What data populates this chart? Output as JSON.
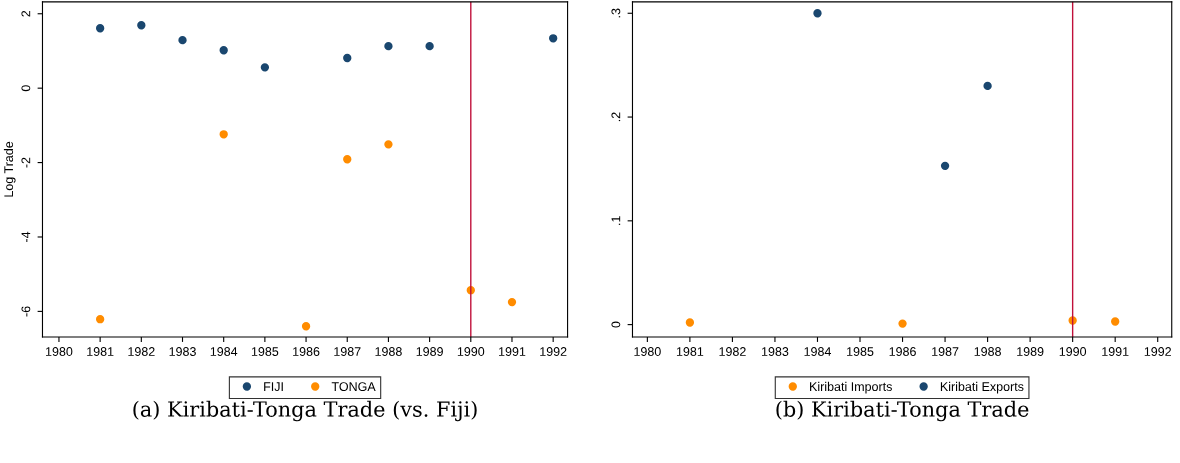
{
  "chart_data": [
    {
      "type": "scatter",
      "ylabel": "Log Trade",
      "x": [
        1981,
        1982,
        1983,
        1984,
        1985,
        1986,
        1987,
        1988,
        1989,
        1990,
        1991,
        1992
      ],
      "series": [
        {
          "name": "FIJI",
          "color": "#1a476f",
          "values": [
            1.61,
            1.69,
            1.29,
            1.02,
            0.56,
            null,
            0.81,
            1.13,
            1.13,
            null,
            null,
            1.34
          ]
        },
        {
          "name": "TONGA",
          "color": "#ff8c00",
          "values": [
            -6.21,
            null,
            null,
            -1.24,
            null,
            -6.4,
            -1.91,
            -1.51,
            null,
            -5.43,
            -5.75,
            null
          ]
        }
      ],
      "xlim": [
        1979.6,
        1992.35
      ],
      "xticks": [
        1980,
        1981,
        1982,
        1983,
        1984,
        1985,
        1986,
        1987,
        1988,
        1989,
        1990,
        1991,
        1992
      ],
      "ylim": [
        -6.69,
        2.32
      ],
      "yticks": [
        -6,
        -4,
        -2,
        0,
        2
      ],
      "ref_lines": [
        {
          "axis": "x",
          "value": 1990,
          "color": "#c0103a"
        }
      ],
      "marker": "circle",
      "legend": "bottom",
      "grid": false,
      "annotations": [
        "(a) Kiribati-Tonga Trade (vs. Fiji)"
      ]
    },
    {
      "type": "scatter",
      "x": [
        1981,
        1982,
        1983,
        1984,
        1985,
        1986,
        1987,
        1988,
        1989,
        1990,
        1991
      ],
      "series": [
        {
          "name": "Kiribati Imports",
          "color": "#ff8c00",
          "values": [
            0.002,
            null,
            null,
            null,
            null,
            0.001,
            null,
            null,
            null,
            0.004,
            0.003
          ]
        },
        {
          "name": "Kiribati Exports",
          "color": "#1a476f",
          "values": [
            null,
            null,
            null,
            0.3,
            null,
            null,
            0.153,
            0.23,
            null,
            null,
            null
          ]
        }
      ],
      "xlim": [
        1979.65,
        1992.33
      ],
      "xticks": [
        1980,
        1981,
        1982,
        1983,
        1984,
        1985,
        1986,
        1987,
        1988,
        1989,
        1990,
        1991,
        1992
      ],
      "ylim": [
        -0.012,
        0.311
      ],
      "yticks": [
        {
          "value": 0,
          "label": "0"
        },
        {
          "value": 0.1,
          "label": ".1"
        },
        {
          "value": 0.2,
          "label": ".2"
        },
        {
          "value": 0.3,
          "label": ".3"
        }
      ],
      "ref_lines": [
        {
          "axis": "x",
          "value": 1990,
          "color": "#c0103a"
        }
      ],
      "marker": "circle",
      "legend": "bottom",
      "grid": false,
      "annotations": [
        "(b) Kiribati-Tonga Trade"
      ]
    }
  ]
}
